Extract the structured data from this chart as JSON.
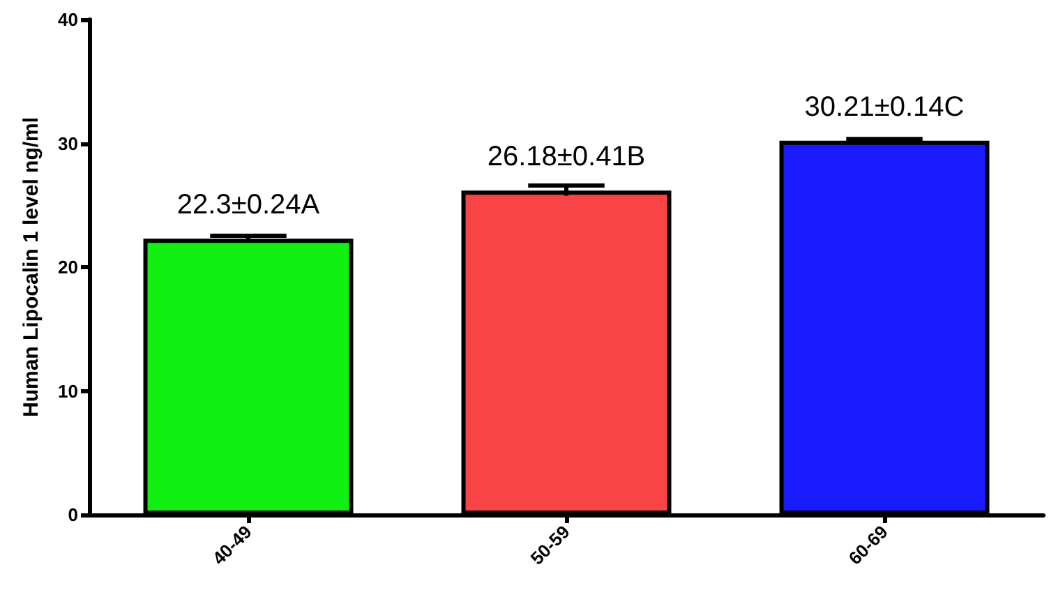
{
  "chart_data": {
    "type": "bar",
    "ylabel": "Human Lipocalin 1 level ng/ml",
    "categories": [
      "40-49",
      "50-59",
      "60-69"
    ],
    "values": [
      22.3,
      26.18,
      30.21
    ],
    "errors": [
      0.24,
      0.41,
      0.14
    ],
    "value_labels": [
      "22.3±0.24A",
      "26.18±0.41B",
      "30.21±0.14C"
    ],
    "colors": [
      "#11f011",
      "#f84444",
      "#1a1aff"
    ],
    "ylim": [
      0,
      40
    ],
    "yticks": [
      0,
      10,
      20,
      30,
      40
    ],
    "grid": false
  }
}
